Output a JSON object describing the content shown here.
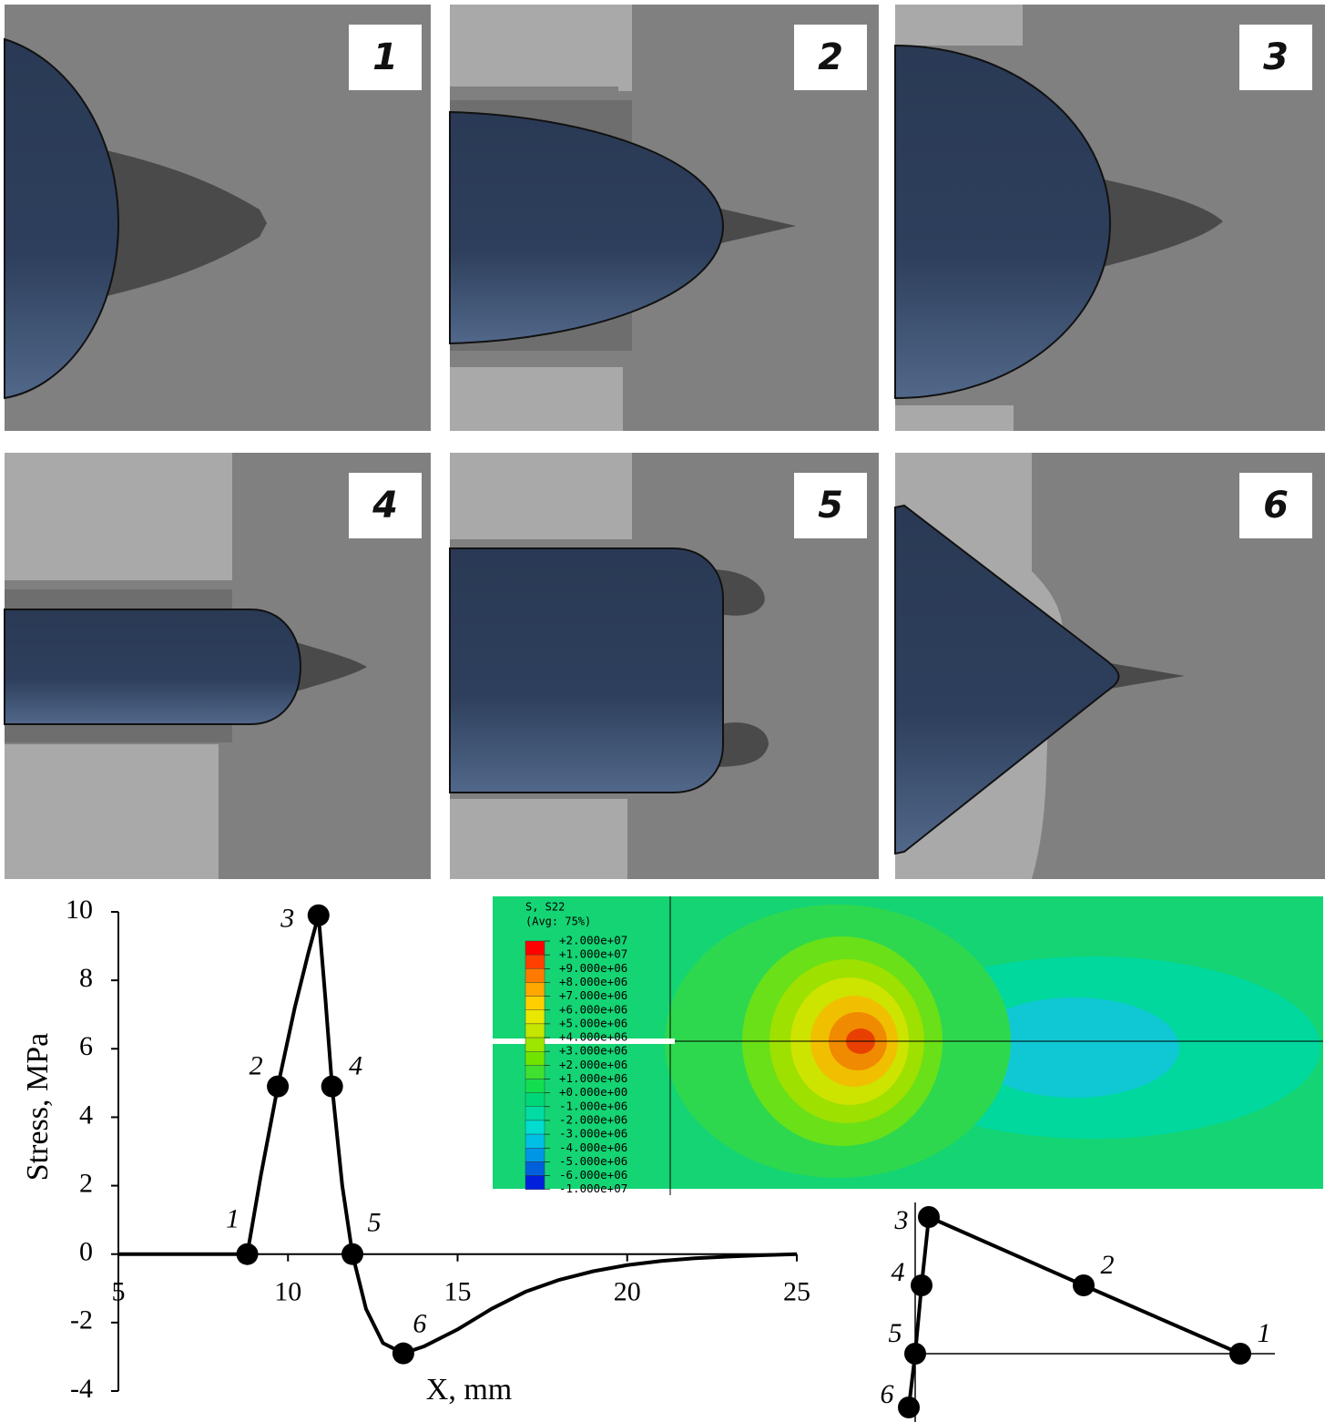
{
  "panels": [
    {
      "label": "1"
    },
    {
      "label": "2"
    },
    {
      "label": "3"
    },
    {
      "label": "4"
    },
    {
      "label": "5"
    },
    {
      "label": "6"
    }
  ],
  "chart_data": {
    "type": "line",
    "x_label": "X, mm",
    "y_label": "Stress, MPa",
    "xlim": [
      5,
      25
    ],
    "xticks": [
      5,
      10,
      15,
      20,
      25
    ],
    "ylim": [
      -4,
      10
    ],
    "yticks": [
      -4,
      -2,
      0,
      2,
      4,
      6,
      8,
      10
    ],
    "series": [
      {
        "color": "#000000",
        "x": [
          5,
          8.8,
          9.2,
          9.7,
          10.2,
          10.6,
          10.9,
          11.1,
          11.3,
          11.6,
          11.9,
          12.3,
          12.8,
          13.4,
          14,
          15,
          16,
          17,
          18,
          19,
          20,
          21,
          22,
          23,
          24,
          25
        ],
        "values": [
          0,
          0,
          2.3,
          4.9,
          7.2,
          8.8,
          9.9,
          7.5,
          4.9,
          2.0,
          0,
          -1.6,
          -2.6,
          -2.9,
          -2.7,
          -2.2,
          -1.6,
          -1.1,
          -0.75,
          -0.5,
          -0.32,
          -0.2,
          -0.12,
          -0.07,
          -0.03,
          0
        ]
      }
    ],
    "markers": {
      "color": "#000000",
      "x": [
        8.8,
        9.7,
        10.9,
        11.3,
        11.9,
        13.4
      ],
      "values": [
        0,
        4.9,
        9.9,
        4.9,
        0,
        -2.9
      ],
      "labels": [
        "1",
        "2",
        "3",
        "4",
        "5",
        "6"
      ]
    }
  },
  "contour": {
    "title": "S, S22",
    "subtitle": "(Avg: 75%)",
    "levels": [
      "+2.000e+07",
      "+1.000e+07",
      "+9.000e+06",
      "+8.000e+06",
      "+7.000e+06",
      "+6.000e+06",
      "+5.000e+06",
      "+4.000e+06",
      "+3.000e+06",
      "+2.000e+06",
      "+1.000e+06",
      "+0.000e+00",
      "-1.000e+06",
      "-2.000e+06",
      "-3.000e+06",
      "-4.000e+06",
      "-5.000e+06",
      "-6.000e+06",
      "-1.000e+07"
    ],
    "colors": [
      "#ff0000",
      "#ff4000",
      "#ff7a00",
      "#ffa800",
      "#ffd000",
      "#e8e800",
      "#c4e600",
      "#9ce600",
      "#70e400",
      "#40e030",
      "#12de50",
      "#00d878",
      "#00dca4",
      "#00dcd0",
      "#00c0e6",
      "#0096e6",
      "#0060dc",
      "#0020dc"
    ]
  },
  "trajectory": {
    "nodes": [
      {
        "label": "1"
      },
      {
        "label": "2"
      },
      {
        "label": "3"
      },
      {
        "label": "4"
      },
      {
        "label": "5"
      },
      {
        "label": "6"
      }
    ]
  }
}
